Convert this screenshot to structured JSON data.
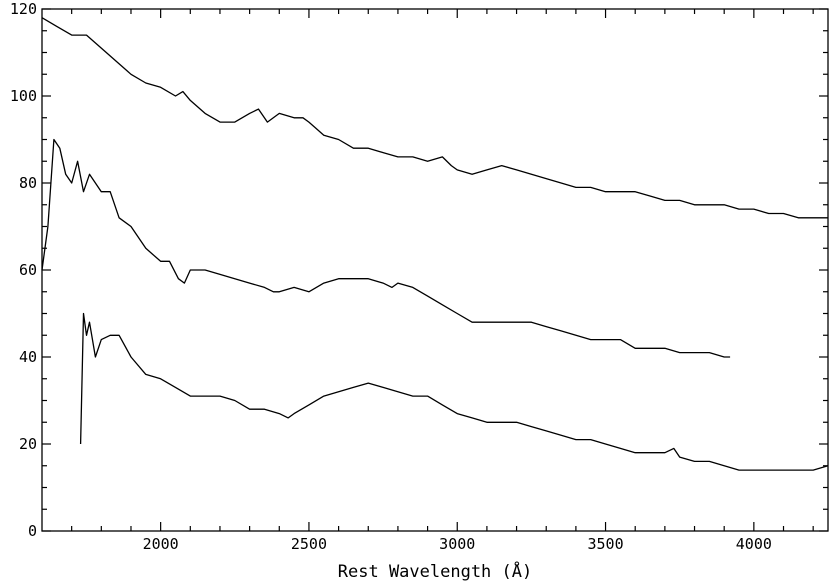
{
  "chart_data": {
    "type": "line",
    "title": "",
    "xlabel": "Rest Wavelength (Å)",
    "ylabel": "",
    "xlim": [
      1600,
      4250
    ],
    "ylim": [
      0,
      120
    ],
    "x_ticks": [
      2000,
      2500,
      3000,
      3500,
      4000
    ],
    "x_tick_labels": [
      "2000",
      "2500",
      "3000",
      "3500",
      "4000"
    ],
    "y_ticks": [
      0,
      20,
      40,
      60,
      80,
      100,
      120
    ],
    "y_tick_labels": [
      "0",
      "20",
      "40",
      "60",
      "80",
      "100",
      "120"
    ],
    "grid": false,
    "legend": "none",
    "series": [
      {
        "x": [
          1600,
          1650,
          1700,
          1750,
          1800,
          1850,
          1900,
          1950,
          2000,
          2050,
          2075,
          2100,
          2150,
          2200,
          2250,
          2300,
          2330,
          2360,
          2400,
          2450,
          2480,
          2500,
          2550,
          2600,
          2650,
          2700,
          2750,
          2800,
          2850,
          2900,
          2950,
          2980,
          3000,
          3050,
          3100,
          3150,
          3200,
          3250,
          3300,
          3350,
          3400,
          3450,
          3500,
          3550,
          3600,
          3650,
          3700,
          3750,
          3800,
          3850,
          3900,
          3950,
          4000,
          4050,
          4100,
          4150,
          4200,
          4250
        ],
        "y": [
          118,
          116,
          114,
          114,
          111,
          108,
          105,
          103,
          102,
          100,
          101,
          99,
          96,
          94,
          94,
          96,
          97,
          94,
          96,
          95,
          95,
          94,
          91,
          90,
          88,
          88,
          87,
          86,
          86,
          85,
          86,
          84,
          83,
          82,
          83,
          84,
          83,
          82,
          81,
          80,
          79,
          79,
          78,
          78,
          78,
          77,
          76,
          76,
          75,
          75,
          75,
          74,
          74,
          73,
          73,
          72,
          72,
          72
        ]
      },
      {
        "x": [
          1600,
          1620,
          1640,
          1660,
          1680,
          1700,
          1720,
          1740,
          1760,
          1780,
          1800,
          1830,
          1860,
          1900,
          1950,
          2000,
          2030,
          2060,
          2080,
          2100,
          2150,
          2200,
          2250,
          2300,
          2350,
          2380,
          2400,
          2450,
          2500,
          2550,
          2600,
          2650,
          2700,
          2750,
          2780,
          2800,
          2850,
          2900,
          2950,
          3000,
          3050,
          3100,
          3150,
          3200,
          3250,
          3300,
          3350,
          3400,
          3450,
          3500,
          3550,
          3600,
          3650,
          3700,
          3750,
          3800,
          3850,
          3900,
          3920
        ],
        "y": [
          60,
          70,
          90,
          88,
          82,
          80,
          85,
          78,
          82,
          80,
          78,
          78,
          72,
          70,
          65,
          62,
          62,
          58,
          57,
          60,
          60,
          59,
          58,
          57,
          56,
          55,
          55,
          56,
          55,
          57,
          58,
          58,
          58,
          57,
          56,
          57,
          56,
          54,
          52,
          50,
          48,
          48,
          48,
          48,
          48,
          47,
          46,
          45,
          44,
          44,
          44,
          42,
          42,
          42,
          41,
          41,
          41,
          40,
          40
        ]
      },
      {
        "x": [
          1730,
          1740,
          1750,
          1760,
          1780,
          1800,
          1830,
          1860,
          1900,
          1950,
          2000,
          2050,
          2100,
          2150,
          2200,
          2250,
          2300,
          2350,
          2400,
          2430,
          2450,
          2500,
          2550,
          2600,
          2650,
          2700,
          2750,
          2800,
          2850,
          2900,
          2950,
          3000,
          3050,
          3100,
          3150,
          3200,
          3250,
          3300,
          3350,
          3400,
          3450,
          3500,
          3550,
          3600,
          3650,
          3700,
          3730,
          3750,
          3800,
          3850,
          3900,
          3950,
          4000,
          4050,
          4100,
          4150,
          4200,
          4250
        ],
        "y": [
          20,
          50,
          45,
          48,
          40,
          44,
          45,
          45,
          40,
          36,
          35,
          33,
          31,
          31,
          31,
          30,
          28,
          28,
          27,
          26,
          27,
          29,
          31,
          32,
          33,
          34,
          33,
          32,
          31,
          31,
          29,
          27,
          26,
          25,
          25,
          25,
          24,
          23,
          22,
          21,
          21,
          20,
          19,
          18,
          18,
          18,
          19,
          17,
          16,
          16,
          15,
          14,
          14,
          14,
          14,
          14,
          14,
          15
        ]
      }
    ]
  }
}
